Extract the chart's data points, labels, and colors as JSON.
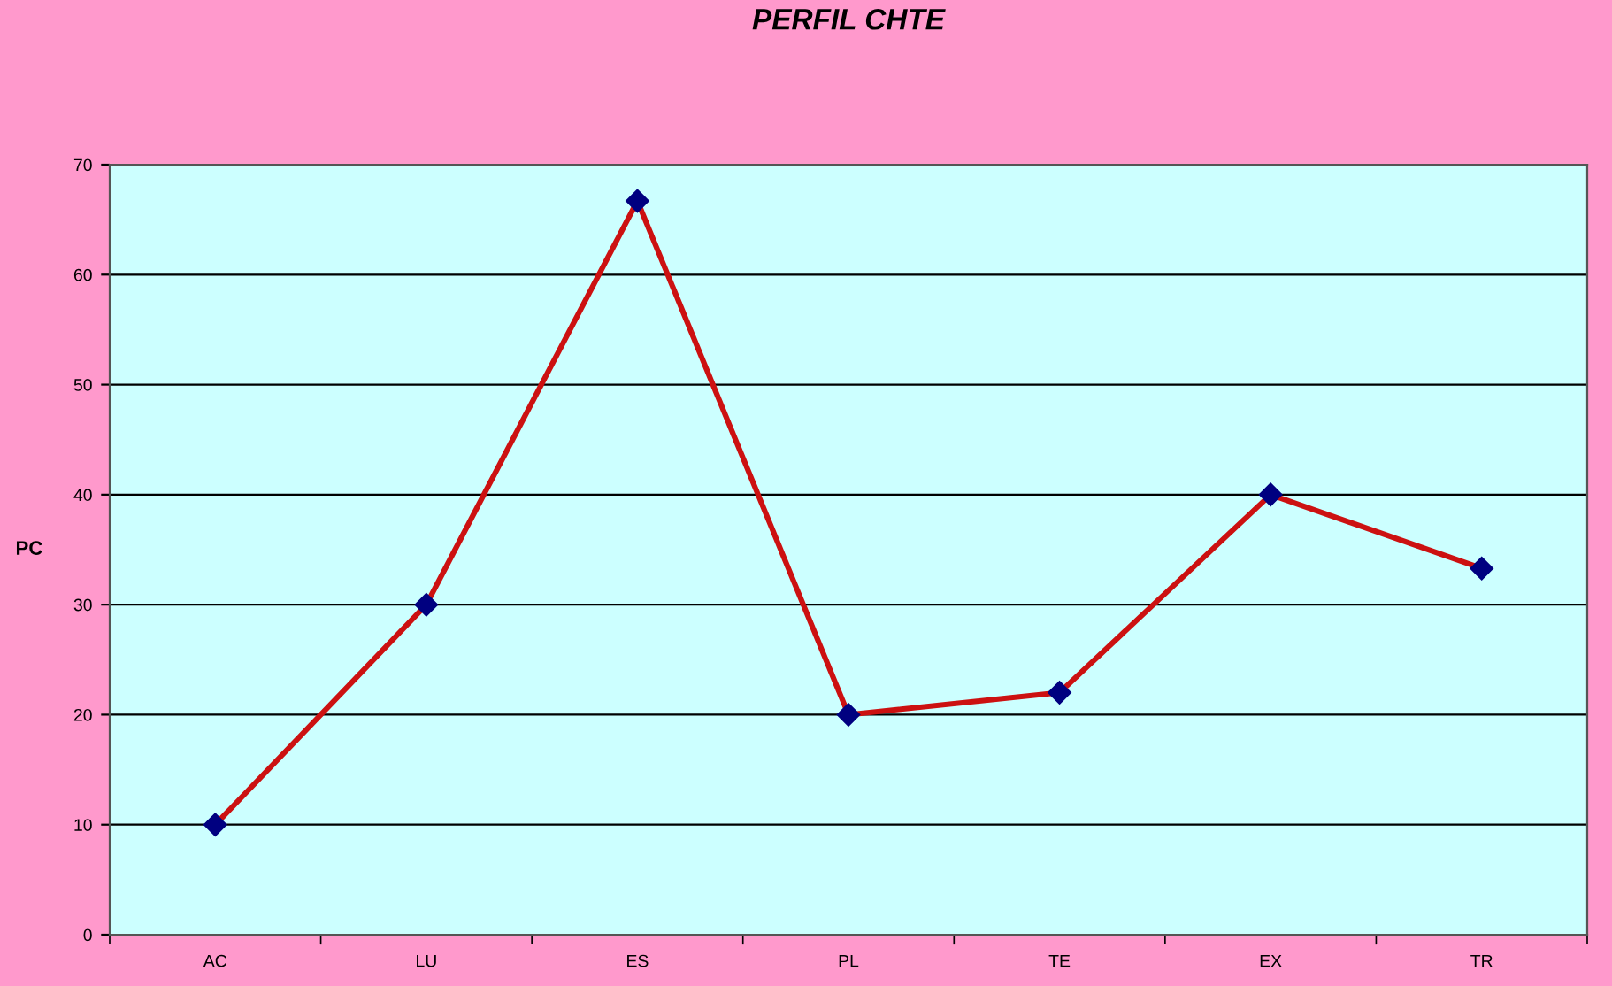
{
  "chart_data": {
    "type": "line",
    "title": "PERFIL CHTE",
    "ylabel": "PC",
    "categories": [
      "AC",
      "LU",
      "ES",
      "PL",
      "TE",
      "EX",
      "TR"
    ],
    "series": [
      {
        "color": "#cc1111",
        "values": [
          10,
          30,
          66.7,
          20,
          22,
          40,
          33.3
        ]
      }
    ],
    "ylim": [
      0,
      70
    ],
    "yticks": [
      0,
      10,
      20,
      30,
      40,
      50,
      60,
      70
    ],
    "grid": "y",
    "marker": "diamond",
    "line_style": "solid"
  }
}
